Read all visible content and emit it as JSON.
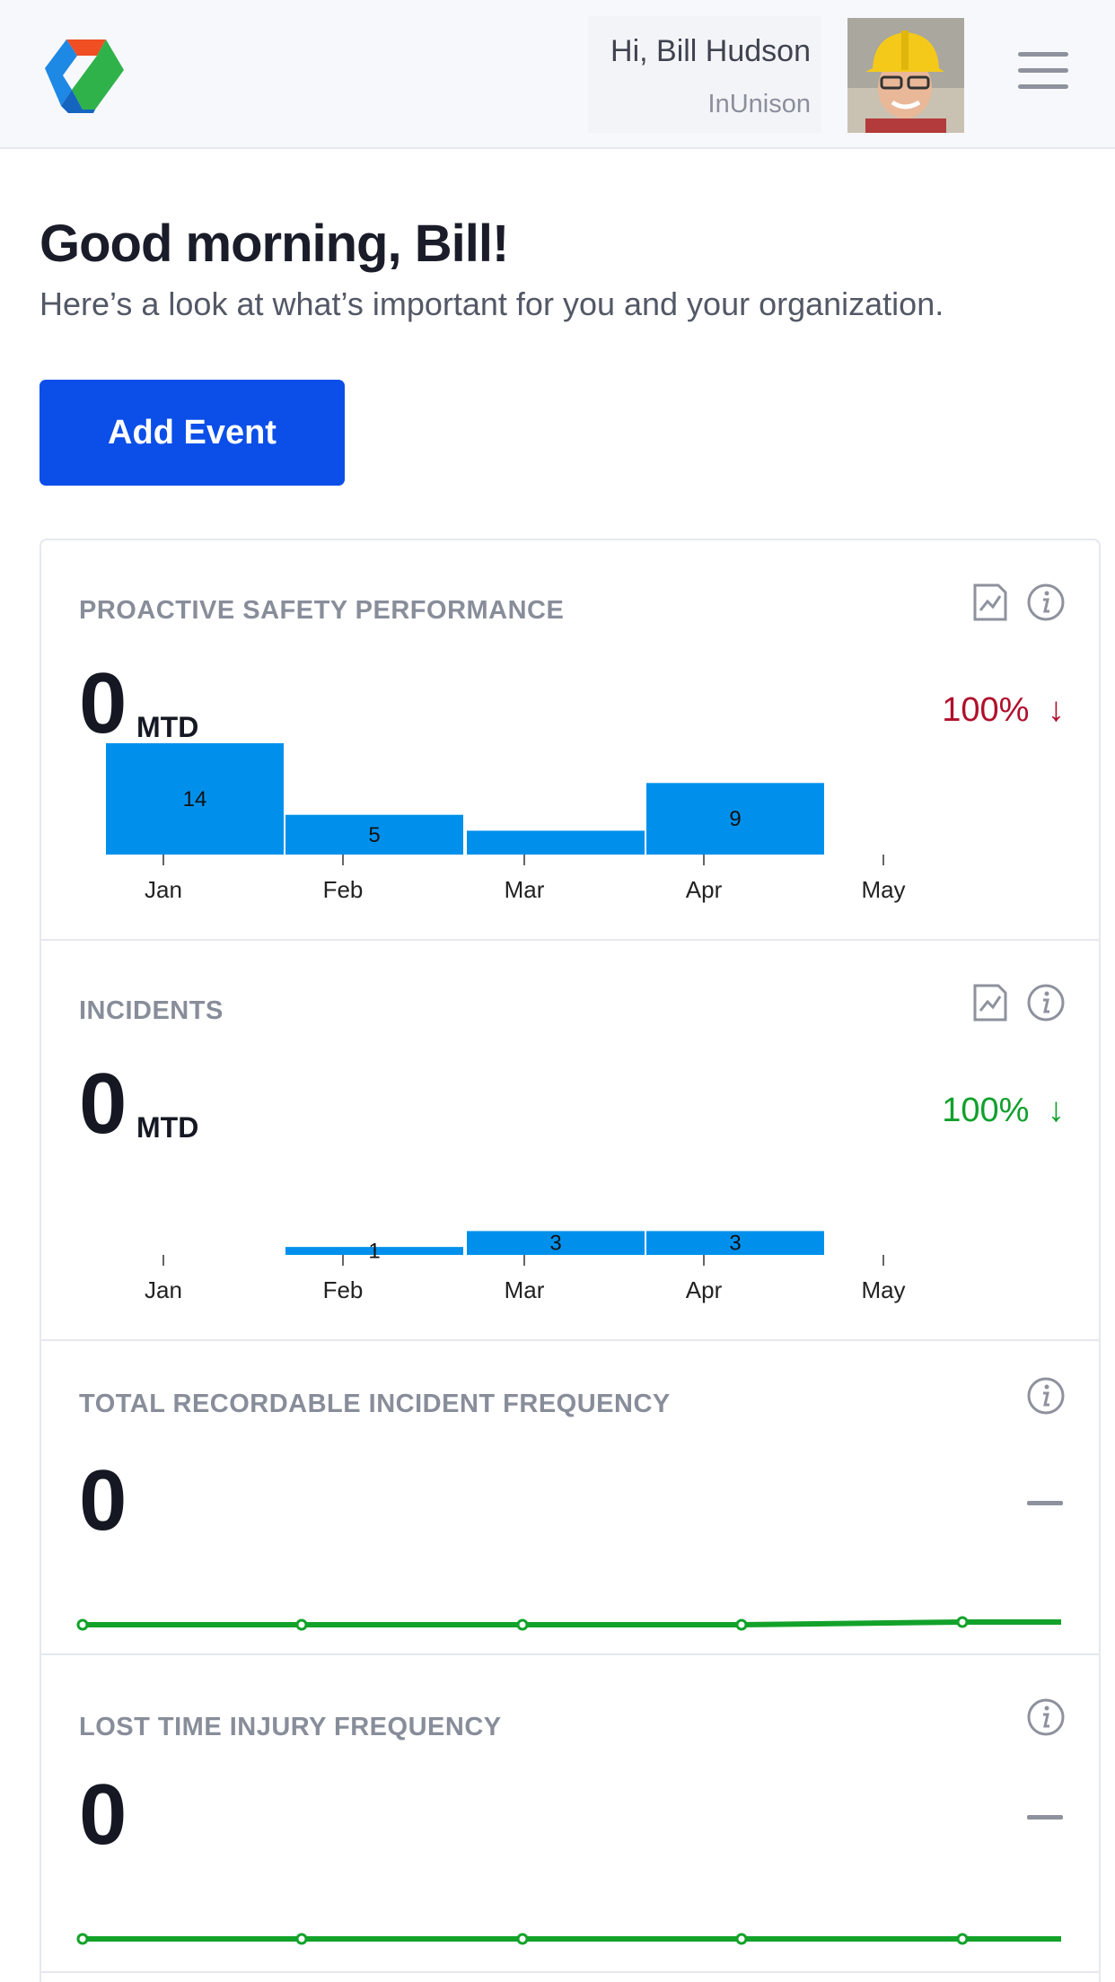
{
  "header": {
    "greeting": "Hi, Bill Hudson",
    "organization": "InUnison",
    "logo_icon": "brand-logo-icon",
    "menu_icon": "hamburger-menu-icon",
    "avatar_icon": "user-avatar"
  },
  "main": {
    "title": "Good morning, Bill!",
    "subtitle": "Here’s a look at what’s important for you and your organization.",
    "add_event_label": "Add Event"
  },
  "colors": {
    "accent": "#0b4fe8",
    "bar": "#0090ec",
    "negative": "#b0102c",
    "positive": "#10a02c",
    "line": "#12a22a"
  },
  "cards": [
    {
      "title": "PROACTIVE SAFETY PERFORMANCE",
      "value": "0",
      "unit": "MTD",
      "change": "100%",
      "change_arrow": "↓"
    },
    {
      "title": "INCIDENTS",
      "value": "0",
      "unit": "MTD",
      "change": "100%",
      "change_arrow": "↓"
    },
    {
      "title": "TOTAL RECORDABLE INCIDENT FREQUENCY",
      "value": "0"
    },
    {
      "title": "LOST TIME INJURY FREQUENCY",
      "value": "0"
    }
  ],
  "chart_data": [
    {
      "type": "bar",
      "categories": [
        "Jan",
        "Feb",
        "Mar",
        "Apr",
        "May"
      ],
      "values": [
        14,
        5,
        3,
        9,
        0
      ],
      "labels": [
        "14",
        "5",
        "",
        "9",
        ""
      ],
      "title": "",
      "xlabel": "",
      "ylabel": ""
    },
    {
      "type": "bar",
      "categories": [
        "Jan",
        "Feb",
        "Mar",
        "Apr",
        "May"
      ],
      "values": [
        0,
        1,
        3,
        3,
        0
      ],
      "labels": [
        "",
        "1",
        "3",
        "3",
        ""
      ],
      "title": "",
      "xlabel": "",
      "ylabel": ""
    },
    {
      "type": "line",
      "x": [
        1,
        2,
        3,
        4,
        5
      ],
      "values": [
        0,
        0,
        0,
        0,
        0.1
      ],
      "ylim": [
        0,
        1.5
      ],
      "title": "",
      "xlabel": "",
      "ylabel": ""
    },
    {
      "type": "line",
      "x": [
        1,
        2,
        3,
        4,
        5
      ],
      "values": [
        0,
        0,
        0,
        0,
        0
      ],
      "ylim": [
        0,
        1.5
      ],
      "title": "",
      "xlabel": "",
      "ylabel": ""
    }
  ]
}
